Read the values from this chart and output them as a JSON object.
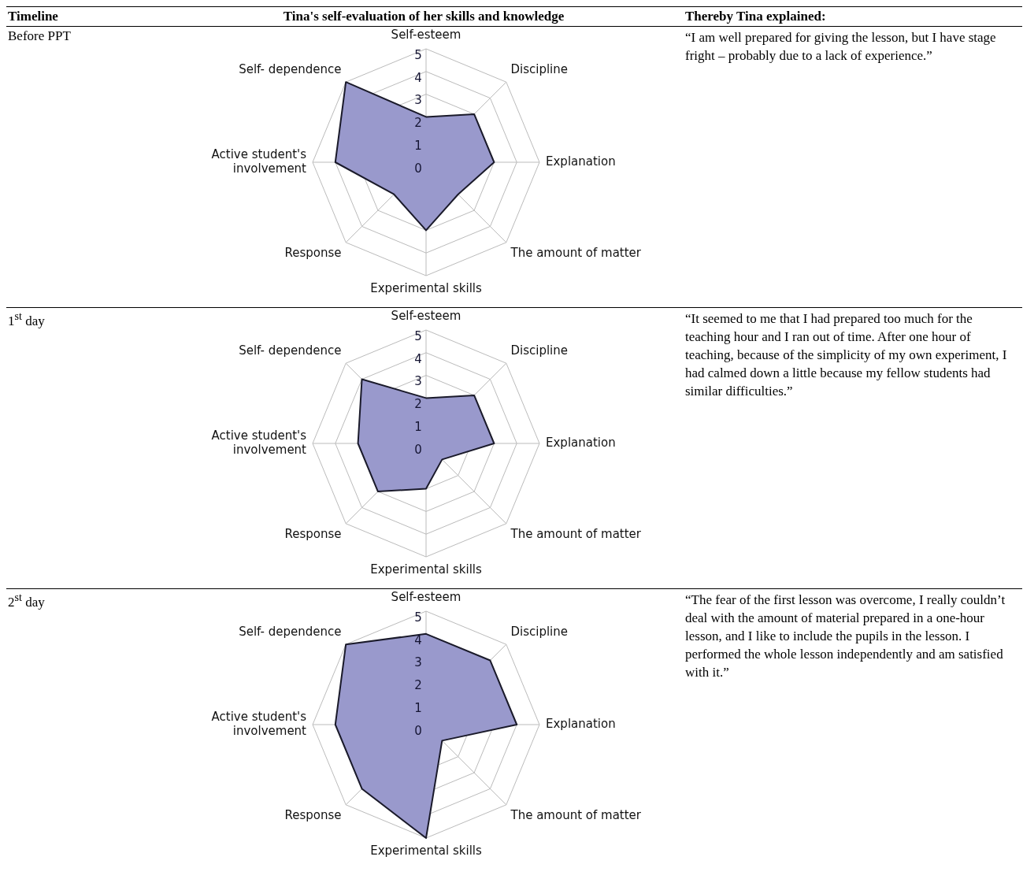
{
  "chart_data": [
    {
      "type": "radar",
      "title": "Before PPT",
      "categories": [
        "Self-esteem",
        "Discipline",
        "Explanation",
        "The amount of matter",
        "Experimental skills",
        "Response",
        "Active student's involvement",
        "Self- dependence"
      ],
      "series": [
        {
          "color": "#9999cc",
          "values": [
            2,
            3,
            3,
            2,
            3,
            2,
            4,
            5
          ]
        }
      ],
      "ylim": [
        0,
        5
      ],
      "yticks": [
        0,
        1,
        2,
        3,
        4,
        5
      ],
      "grid": true,
      "legend": false,
      "marker": "none",
      "annotations": [
        "Timeline",
        "Tina's self-evaluation of her skills and knowledge",
        "Thereby Tina explained:",
        "“I am well prepared for giving the lesson, but I have stage fright – probably due to a lack of experience.”"
      ]
    },
    {
      "type": "radar",
      "title": "1$^{st}$ day",
      "categories": [
        "Self-esteem",
        "Discipline",
        "Explanation",
        "The amount of matter",
        "Experimental skills",
        "Response",
        "Active student's involvement",
        "Self- dependence"
      ],
      "series": [
        {
          "color": "#9999cc",
          "values": [
            2,
            3,
            3,
            1,
            2,
            3,
            3,
            4
          ]
        }
      ],
      "ylim": [
        0,
        5
      ],
      "yticks": [
        0,
        1,
        2,
        3,
        4,
        5
      ],
      "grid": true,
      "legend": false,
      "marker": "none",
      "annotations": [
        "“It seemed to me that I had prepared too much for the teaching hour and I ran out of time. After one hour of teaching, because of the simplicity of my own experiment, I had calmed down a little because my fellow students had similar difficulties.”"
      ]
    },
    {
      "type": "radar",
      "title": "2$^{st}$ day",
      "categories": [
        "Self-esteem",
        "Discipline",
        "Explanation",
        "The amount of matter",
        "Experimental skills",
        "Response",
        "Active student's involvement",
        "Self- dependence"
      ],
      "series": [
        {
          "color": "#9999cc",
          "values": [
            4,
            4,
            4,
            1,
            5,
            4,
            4,
            5
          ]
        }
      ],
      "ylim": [
        0,
        5
      ],
      "yticks": [
        0,
        1,
        2,
        3,
        4,
        5
      ],
      "grid": true,
      "legend": false,
      "marker": "none",
      "annotations": [
        "“The fear of the first lesson was overcome, I really couldn’t deal with the amount of material prepared in a one-hour lesson, and I like to include the pupils in the lesson. I performed the whole lesson independently and am satisfied with it.”"
      ]
    }
  ]
}
